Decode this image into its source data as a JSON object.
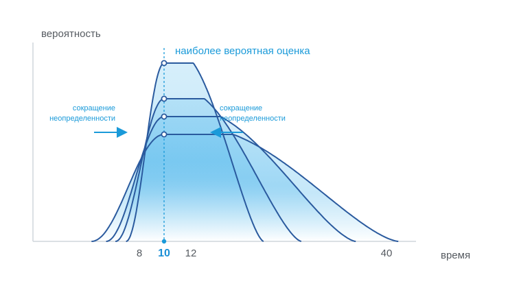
{
  "chart_data": {
    "type": "line",
    "ylabel": "вероятность",
    "xlabel": "время",
    "x_ticks": [
      {
        "label": "8",
        "highlight": false
      },
      {
        "label": "10",
        "highlight": true
      },
      {
        "label": "12",
        "highlight": false
      },
      {
        "label": "40",
        "highlight": false
      }
    ],
    "annotations": {
      "mode_line": "наиболее вероятная оценка",
      "left_line1": "сокращение",
      "left_line2": "неопределенности",
      "right_line1": "сокращение",
      "right_line2": "неопределенности"
    },
    "mode_x": 10,
    "curves": [
      {
        "start": 4.4,
        "end": 42.0,
        "peak": 0.6
      },
      {
        "start": 5.5,
        "end": 35.6,
        "peak": 0.7
      },
      {
        "start": 6.2,
        "end": 27.8,
        "peak": 0.8
      },
      {
        "start": 7.0,
        "end": 22.4,
        "peak": 1.0
      }
    ],
    "colors": {
      "axis": "#cfd5dc",
      "curve": "#2a5a9e",
      "accent": "#1a9ad9",
      "fill_top": "#4fb6ea",
      "fill_bottom": "#ffffff"
    }
  }
}
